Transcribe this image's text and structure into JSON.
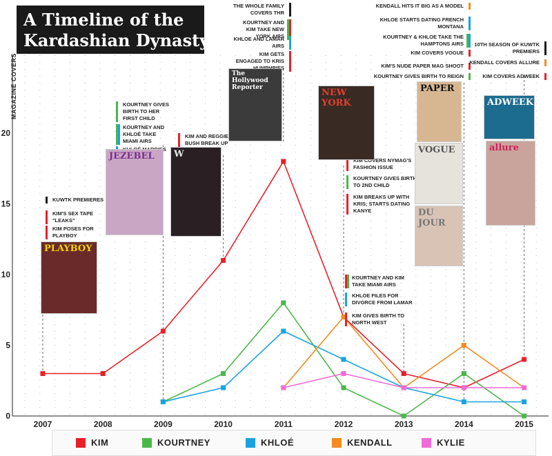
{
  "title": {
    "line1": "A Timeline of the",
    "line2": "Kardashian Dynasty"
  },
  "colors": {
    "kim": "#e8202a",
    "kourtney": "#4bb74a",
    "khloe": "#1aa3e0",
    "kendall": "#f58a1f",
    "kylie": "#f06bd8",
    "ink": "#1a1a1a"
  },
  "chart_data": {
    "type": "line",
    "ylabel": "MAGAZINE COVERS",
    "x": [
      2007,
      2008,
      2009,
      2010,
      2011,
      2012,
      2013,
      2014,
      2015
    ],
    "ylim": [
      0,
      28
    ],
    "yticks": [
      0,
      5,
      10,
      15,
      20
    ],
    "grid": "dotted",
    "series": [
      {
        "name": "KIM",
        "color": "#e8202a",
        "points": [
          [
            2007,
            3
          ],
          [
            2008,
            3
          ],
          [
            2009,
            6
          ],
          [
            2010,
            11
          ],
          [
            2011,
            18
          ],
          [
            2012,
            7
          ],
          [
            2013,
            3
          ],
          [
            2014,
            2
          ],
          [
            2015,
            4
          ]
        ]
      },
      {
        "name": "KOURTNEY",
        "color": "#4bb74a",
        "points": [
          [
            2009,
            1
          ],
          [
            2010,
            3
          ],
          [
            2011,
            8
          ],
          [
            2012,
            2
          ],
          [
            2013,
            0
          ],
          [
            2014,
            3
          ],
          [
            2015,
            0
          ]
        ]
      },
      {
        "name": "KHLOÉ",
        "color": "#1aa3e0",
        "points": [
          [
            2009,
            1
          ],
          [
            2010,
            2
          ],
          [
            2011,
            6
          ],
          [
            2012,
            4
          ],
          [
            2013,
            2
          ],
          [
            2014,
            1
          ],
          [
            2015,
            1
          ]
        ]
      },
      {
        "name": "KENDALL",
        "color": "#f58a1f",
        "points": [
          [
            2011,
            2
          ],
          [
            2012,
            7
          ],
          [
            2013,
            2
          ],
          [
            2014,
            5
          ],
          [
            2015,
            2
          ]
        ]
      },
      {
        "name": "KYLIE",
        "color": "#f06bd8",
        "points": [
          [
            2011,
            2
          ],
          [
            2012,
            3
          ],
          [
            2013,
            2
          ],
          [
            2014,
            2
          ],
          [
            2015,
            2
          ]
        ]
      }
    ],
    "annotations": [
      {
        "year": 2007,
        "items": [
          {
            "text": "KUWTK PREMIERES",
            "colors": [
              "#1a1a1a"
            ]
          },
          {
            "text": "KIM'S SEX TAPE \"LEAKS\"",
            "colors": [
              "#e8202a"
            ]
          },
          {
            "text": "KIM POSES FOR PLAYBOY",
            "colors": [
              "#e8202a"
            ]
          }
        ]
      },
      {
        "year": 2009,
        "items": [
          {
            "text": "KOURTNEY GIVES BIRTH TO HER FIRST CHILD",
            "colors": [
              "#4bb74a"
            ]
          },
          {
            "text": "KOURTNEY AND KHLOÉ TAKE MIAMI AIRS",
            "colors": [
              "#4bb74a",
              "#1aa3e0"
            ]
          },
          {
            "text": "KHLOÉ MARRIES LAMAR ODOM",
            "colors": [
              "#1aa3e0"
            ]
          }
        ]
      },
      {
        "year": 2010,
        "items": [
          {
            "text": "KIM AND REGGIE BUSH BREAK UP",
            "colors": [
              "#e8202a"
            ]
          }
        ]
      },
      {
        "year": 2011,
        "items": [
          {
            "text": "THE WHOLE FAMILY COVERS THR",
            "colors": [
              "#1a1a1a"
            ]
          },
          {
            "text": "KOURTNEY AND KIM TAKE NEW YORK AIRS",
            "colors": [
              "#4bb74a",
              "#e8202a"
            ]
          },
          {
            "text": "KHLOE AND LAMAR AIRS",
            "colors": [
              "#1aa3e0"
            ]
          },
          {
            "text": "KIM GETS ENGAGED TO KRIS HUMPHRIES",
            "colors": [
              "#e8202a"
            ]
          }
        ]
      },
      {
        "year": 2012,
        "items": [
          {
            "text": "KIM COVERS NYMAG'S FASHION ISSUE",
            "colors": [
              "#e8202a"
            ]
          },
          {
            "text": "KOURTNEY GIVES BIRTH TO 2ND CHILD",
            "colors": [
              "#4bb74a"
            ]
          },
          {
            "text": "KIM BREAKS UP WITH KRIS; STARTS DATING KANYE",
            "colors": [
              "#e8202a"
            ]
          }
        ]
      },
      {
        "year": 2013,
        "items": [
          {
            "text": "KOURTNEY AND KIM TAKE MIAMI AIRS",
            "colors": [
              "#e8202a",
              "#4bb74a"
            ]
          },
          {
            "text": "KHLOE FILES FOR DIVORCE FROM LAMAR",
            "colors": [
              "#1aa3e0"
            ]
          },
          {
            "text": "KIM GIVES BIRTH TO NORTH WEST",
            "colors": [
              "#e8202a"
            ]
          }
        ]
      },
      {
        "year": 2014,
        "items": [
          {
            "text": "KENDALL HITS IT BIG AS A MODEL",
            "colors": [
              "#f58a1f"
            ]
          },
          {
            "text": "KHLOE STARTS DATING FRENCH MONTANA",
            "colors": [
              "#1aa3e0"
            ]
          },
          {
            "text": "KOURTNEY & KHLOE TAKE THE HAMPTONS AIRS",
            "colors": [
              "#4bb74a",
              "#1aa3e0"
            ]
          },
          {
            "text": "KIM COVERS VOGUE",
            "colors": [
              "#e8202a"
            ]
          },
          {
            "text": "KIM'S NUDE PAPER MAG SHOOT",
            "colors": [
              "#e8202a"
            ]
          },
          {
            "text": "KOURTNEY GIVES BIRTH TO REIGN",
            "colors": [
              "#4bb74a"
            ]
          }
        ]
      },
      {
        "year": 2015,
        "items": [
          {
            "text": "10TH SEASON OF KUWTK PREMIERS",
            "colors": [
              "#1a1a1a"
            ]
          },
          {
            "text": "KENDALL COVERS ALLURE",
            "colors": [
              "#f58a1f"
            ]
          },
          {
            "text": "KIM COVERS ADWEEK",
            "colors": [
              "#e8202a"
            ]
          }
        ]
      }
    ],
    "covers": [
      {
        "label": "PLAYBOY",
        "year": 2007
      },
      {
        "label": "JEZEBEL",
        "year": 2009
      },
      {
        "label": "W",
        "year": 2010
      },
      {
        "label": "The Hollywood Reporter",
        "year": 2011
      },
      {
        "label": "NEW YORK",
        "year": 2012
      },
      {
        "label": "PAPER",
        "year": 2014
      },
      {
        "label": "VOGUE",
        "year": 2014
      },
      {
        "label": "DU JOUR",
        "year": 2014
      },
      {
        "label": "ADWEEK",
        "year": 2015
      },
      {
        "label": "allure",
        "year": 2015
      }
    ]
  },
  "legend": [
    {
      "label": "KIM",
      "color": "#e8202a"
    },
    {
      "label": "KOURTNEY",
      "color": "#4bb74a"
    },
    {
      "label": "KHLOÉ",
      "color": "#1aa3e0"
    },
    {
      "label": "KENDALL",
      "color": "#f58a1f"
    },
    {
      "label": "KYLIE",
      "color": "#f06bd8"
    }
  ]
}
